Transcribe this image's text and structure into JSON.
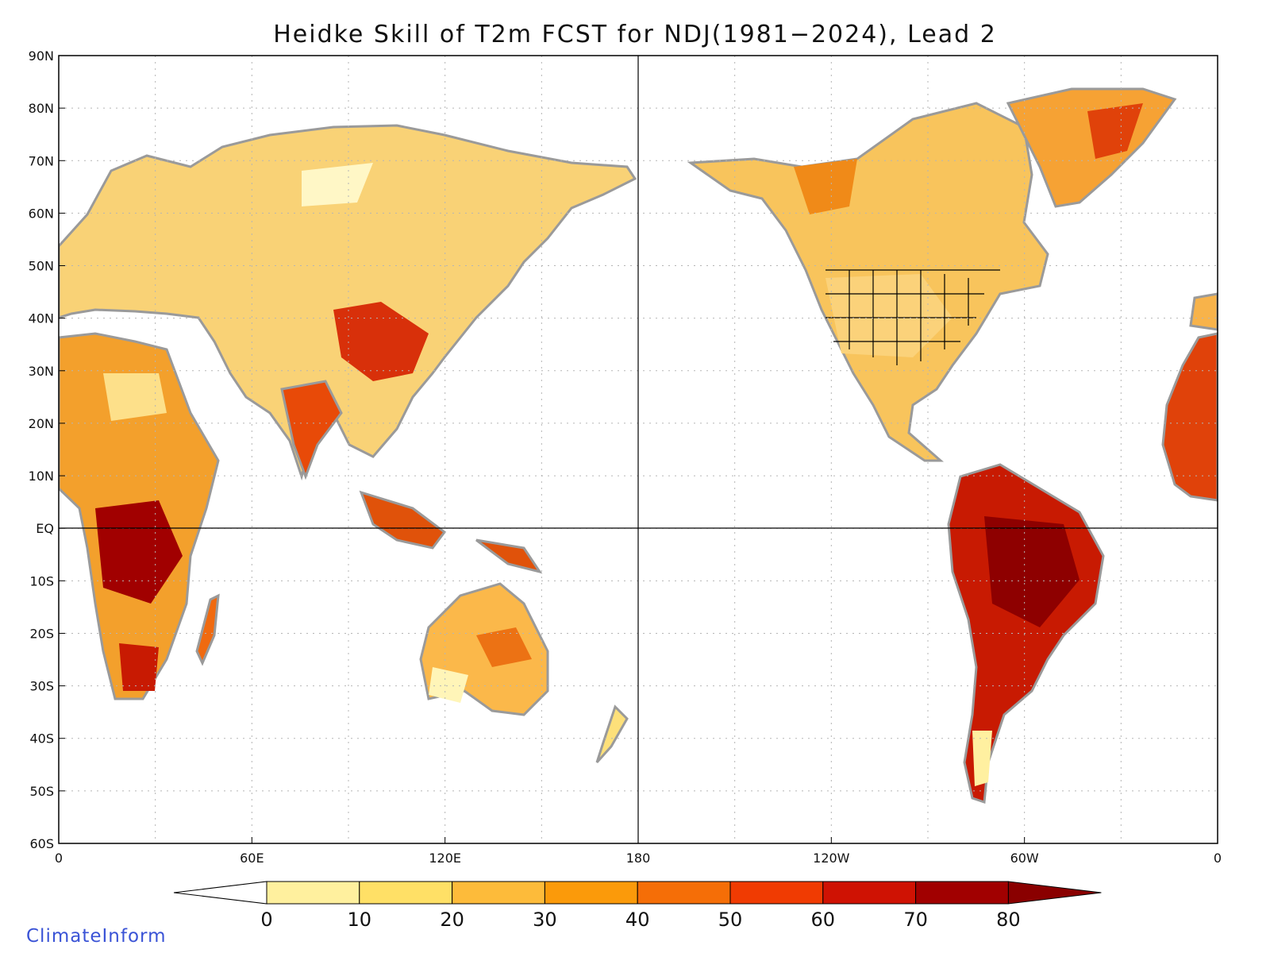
{
  "title": "Heidke Skill of T2m FCST for NDJ(1981−2024), Lead 2",
  "credit": "ClimateInform",
  "map": {
    "projection": "equirectangular",
    "center_longitude": "180",
    "lat_range": [
      -60,
      90
    ],
    "lon_range": [
      0,
      360
    ],
    "lat_ticks": [
      "90N",
      "80N",
      "70N",
      "60N",
      "50N",
      "40N",
      "30N",
      "20N",
      "10N",
      "EQ",
      "10S",
      "20S",
      "30S",
      "40S",
      "50S",
      "60S"
    ],
    "lon_ticks": [
      "0",
      "60E",
      "120E",
      "180",
      "120W",
      "60W",
      "0"
    ],
    "colors": {
      "coastline": "#9a9a9a",
      "lakes": "#000000",
      "grid": "#b5b5b5",
      "land_fill_base": "#f7c869"
    }
  },
  "colorbar": {
    "labels": [
      "0",
      "10",
      "20",
      "30",
      "40",
      "50",
      "60",
      "70",
      "80"
    ],
    "colors": [
      "#ffffff",
      "#fff09e",
      "#ffe066",
      "#fdbb3a",
      "#fb9a0a",
      "#f56e07",
      "#f03b02",
      "#cf1203",
      "#a10000",
      "#8a0000"
    ]
  }
}
